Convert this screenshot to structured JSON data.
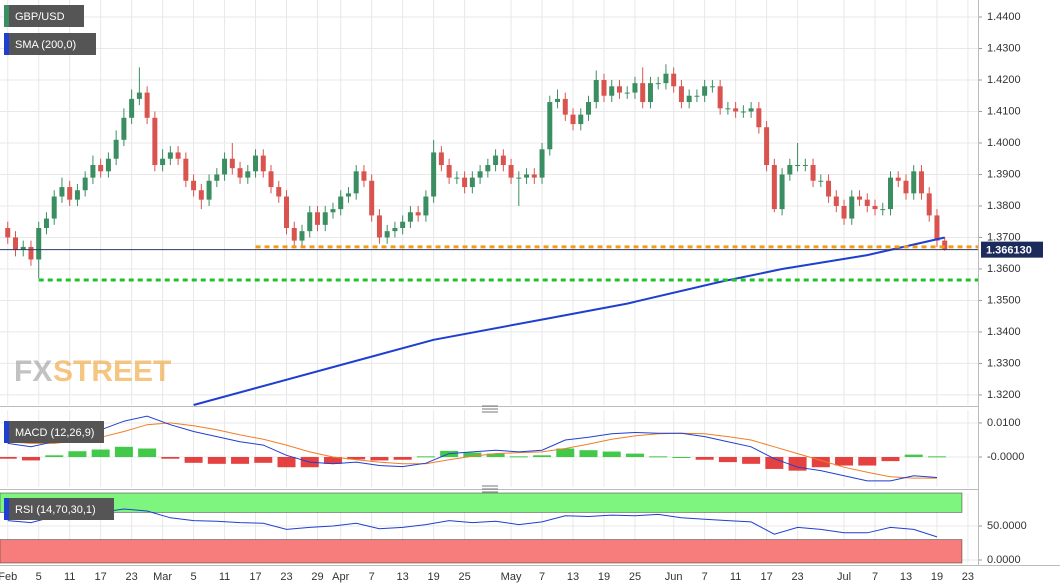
{
  "chart_data": [
    {
      "type": "candlestick",
      "name": "GBP/USD",
      "up_color": "#3b8e61",
      "down_color": "#d9534f",
      "xlim": [
        -1,
        125.3
      ],
      "ylim": [
        1.3168,
        1.4454
      ],
      "grid": true,
      "xticks": [
        {
          "value": 0,
          "label": "Feb"
        },
        {
          "value": 4,
          "label": "5"
        },
        {
          "value": 8,
          "label": "11"
        },
        {
          "value": 12,
          "label": "17"
        },
        {
          "value": 16,
          "label": "23"
        },
        {
          "value": 20,
          "label": "Mar"
        },
        {
          "value": 24,
          "label": "5"
        },
        {
          "value": 28,
          "label": "11"
        },
        {
          "value": 32,
          "label": "17"
        },
        {
          "value": 36,
          "label": "23"
        },
        {
          "value": 40,
          "label": "29"
        },
        {
          "value": 43,
          "label": "Apr"
        },
        {
          "value": 47,
          "label": "7"
        },
        {
          "value": 51,
          "label": "13"
        },
        {
          "value": 55,
          "label": "19"
        },
        {
          "value": 59,
          "label": "25"
        },
        {
          "value": 65,
          "label": "May"
        },
        {
          "value": 69,
          "label": "7"
        },
        {
          "value": 73,
          "label": "13"
        },
        {
          "value": 77,
          "label": "19"
        },
        {
          "value": 81,
          "label": "25"
        },
        {
          "value": 86,
          "label": "Jun"
        },
        {
          "value": 90,
          "label": "7"
        },
        {
          "value": 94,
          "label": "11"
        },
        {
          "value": 98,
          "label": "17"
        },
        {
          "value": 102,
          "label": "23"
        },
        {
          "value": 108,
          "label": "Jul"
        },
        {
          "value": 112,
          "label": "7"
        },
        {
          "value": 116,
          "label": "13"
        },
        {
          "value": 120,
          "label": "19"
        },
        {
          "value": 124,
          "label": "23"
        }
      ],
      "yticks": [
        {
          "value": 1.44,
          "label": "1.4400"
        },
        {
          "value": 1.43,
          "label": "1.4300"
        },
        {
          "value": 1.42,
          "label": "1.4200"
        },
        {
          "value": 1.41,
          "label": "1.4100"
        },
        {
          "value": 1.4,
          "label": "1.4000"
        },
        {
          "value": 1.39,
          "label": "1.3900"
        },
        {
          "value": 1.38,
          "label": "1.3800"
        },
        {
          "value": 1.37,
          "label": "1.3700"
        },
        {
          "value": 1.36,
          "label": "1.3600"
        },
        {
          "value": 1.35,
          "label": "1.3500"
        },
        {
          "value": 1.34,
          "label": "1.3400"
        },
        {
          "value": 1.33,
          "label": "1.3300"
        },
        {
          "value": 1.32,
          "label": "1.3200"
        }
      ],
      "open": [
        1.373,
        1.37,
        1.366,
        1.367,
        1.363,
        1.373,
        1.376,
        1.383,
        1.386,
        1.382,
        1.385,
        1.389,
        1.393,
        1.391,
        1.395,
        1.401,
        1.408,
        1.414,
        1.416,
        1.408,
        1.393,
        1.395,
        1.397,
        1.395,
        1.388,
        1.385,
        1.382,
        1.388,
        1.39,
        1.395,
        1.392,
        1.389,
        1.391,
        1.396,
        1.391,
        1.386,
        1.383,
        1.373,
        1.369,
        1.372,
        1.378,
        1.374,
        1.378,
        1.379,
        1.383,
        1.384,
        1.391,
        1.388,
        1.377,
        1.37,
        1.372,
        1.373,
        1.375,
        1.378,
        1.377,
        1.383,
        1.397,
        1.393,
        1.389,
        1.389,
        1.386,
        1.389,
        1.391,
        1.393,
        1.396,
        1.393,
        1.389,
        1.389,
        1.39,
        1.389,
        1.398,
        1.413,
        1.414,
        1.409,
        1.406,
        1.409,
        1.413,
        1.42,
        1.415,
        1.418,
        1.416,
        1.416,
        1.419,
        1.413,
        1.419,
        1.419,
        1.422,
        1.418,
        1.413,
        1.415,
        1.415,
        1.418,
        1.418,
        1.411,
        1.411,
        1.41,
        1.41,
        1.411,
        1.405,
        1.393,
        1.379,
        1.39,
        1.393,
        1.393,
        1.393,
        1.388,
        1.388,
        1.383,
        1.38,
        1.376,
        1.383,
        1.382,
        1.38,
        1.379,
        1.379,
        1.389,
        1.388,
        1.384,
        1.391,
        1.384,
        1.377,
        1.369
      ],
      "high": [
        1.375,
        1.372,
        1.369,
        1.369,
        1.375,
        1.378,
        1.385,
        1.389,
        1.388,
        1.387,
        1.391,
        1.396,
        1.395,
        1.397,
        1.404,
        1.411,
        1.417,
        1.424,
        1.418,
        1.41,
        1.398,
        1.399,
        1.399,
        1.397,
        1.39,
        1.387,
        1.39,
        1.392,
        1.397,
        1.4,
        1.394,
        1.393,
        1.398,
        1.398,
        1.393,
        1.388,
        1.385,
        1.375,
        1.374,
        1.38,
        1.38,
        1.38,
        1.381,
        1.385,
        1.386,
        1.393,
        1.393,
        1.39,
        1.379,
        1.374,
        1.375,
        1.377,
        1.38,
        1.38,
        1.385,
        1.401,
        1.399,
        1.395,
        1.391,
        1.391,
        1.391,
        1.393,
        1.395,
        1.398,
        1.398,
        1.395,
        1.391,
        1.392,
        1.392,
        1.4,
        1.415,
        1.417,
        1.416,
        1.411,
        1.411,
        1.415,
        1.423,
        1.422,
        1.42,
        1.42,
        1.418,
        1.421,
        1.424,
        1.421,
        1.421,
        1.425,
        1.424,
        1.42,
        1.417,
        1.417,
        1.42,
        1.42,
        1.42,
        1.413,
        1.413,
        1.412,
        1.413,
        1.413,
        1.407,
        1.395,
        1.392,
        1.395,
        1.4,
        1.395,
        1.395,
        1.39,
        1.39,
        1.385,
        1.382,
        1.385,
        1.385,
        1.384,
        1.382,
        1.381,
        1.391,
        1.391,
        1.39,
        1.393,
        1.393,
        1.386,
        1.379,
        1.37
      ],
      "low": [
        1.368,
        1.364,
        1.364,
        1.361,
        1.357,
        1.371,
        1.374,
        1.381,
        1.38,
        1.38,
        1.383,
        1.387,
        1.389,
        1.389,
        1.393,
        1.399,
        1.406,
        1.412,
        1.406,
        1.391,
        1.391,
        1.393,
        1.393,
        1.386,
        1.383,
        1.379,
        1.38,
        1.386,
        1.388,
        1.39,
        1.387,
        1.387,
        1.389,
        1.389,
        1.384,
        1.381,
        1.371,
        1.367,
        1.367,
        1.37,
        1.372,
        1.372,
        1.376,
        1.377,
        1.381,
        1.382,
        1.386,
        1.375,
        1.368,
        1.368,
        1.37,
        1.371,
        1.373,
        1.375,
        1.375,
        1.381,
        1.391,
        1.387,
        1.387,
        1.384,
        1.384,
        1.387,
        1.389,
        1.391,
        1.391,
        1.387,
        1.38,
        1.387,
        1.387,
        1.387,
        1.396,
        1.411,
        1.407,
        1.404,
        1.404,
        1.407,
        1.411,
        1.413,
        1.413,
        1.414,
        1.414,
        1.414,
        1.411,
        1.411,
        1.417,
        1.417,
        1.416,
        1.411,
        1.411,
        1.413,
        1.413,
        1.416,
        1.409,
        1.409,
        1.408,
        1.408,
        1.408,
        1.403,
        1.391,
        1.378,
        1.377,
        1.388,
        1.391,
        1.391,
        1.386,
        1.386,
        1.381,
        1.378,
        1.374,
        1.374,
        1.38,
        1.378,
        1.377,
        1.377,
        1.377,
        1.386,
        1.382,
        1.382,
        1.382,
        1.375,
        1.367,
        1.3658
      ],
      "close": [
        1.37,
        1.366,
        1.367,
        1.363,
        1.373,
        1.376,
        1.383,
        1.386,
        1.382,
        1.385,
        1.389,
        1.393,
        1.391,
        1.395,
        1.401,
        1.408,
        1.414,
        1.416,
        1.408,
        1.393,
        1.395,
        1.397,
        1.395,
        1.388,
        1.385,
        1.382,
        1.388,
        1.39,
        1.395,
        1.392,
        1.389,
        1.391,
        1.396,
        1.391,
        1.386,
        1.383,
        1.373,
        1.369,
        1.372,
        1.378,
        1.374,
        1.378,
        1.379,
        1.383,
        1.384,
        1.391,
        1.388,
        1.377,
        1.37,
        1.372,
        1.373,
        1.375,
        1.378,
        1.377,
        1.383,
        1.397,
        1.393,
        1.389,
        1.389,
        1.386,
        1.389,
        1.391,
        1.393,
        1.396,
        1.393,
        1.389,
        1.389,
        1.39,
        1.389,
        1.398,
        1.413,
        1.414,
        1.409,
        1.406,
        1.409,
        1.413,
        1.42,
        1.415,
        1.418,
        1.416,
        1.416,
        1.419,
        1.413,
        1.419,
        1.419,
        1.422,
        1.418,
        1.413,
        1.415,
        1.415,
        1.418,
        1.418,
        1.411,
        1.411,
        1.41,
        1.41,
        1.411,
        1.405,
        1.393,
        1.379,
        1.39,
        1.393,
        1.393,
        1.393,
        1.388,
        1.388,
        1.383,
        1.38,
        1.376,
        1.383,
        1.382,
        1.38,
        1.379,
        1.379,
        1.389,
        1.388,
        1.384,
        1.391,
        1.384,
        1.377,
        1.369,
        1.3661
      ],
      "sma": {
        "name": "SMA (200,0)",
        "color": "#1f3fd0",
        "x": [
          24,
          43,
          55,
          70,
          80,
          92,
          100,
          111,
          121
        ],
        "values": [
          1.3168,
          1.3295,
          1.3375,
          1.3444,
          1.349,
          1.3559,
          1.36,
          1.3644,
          1.37
        ]
      },
      "levels": [
        {
          "value": 1.367,
          "color": "#f39c12",
          "from": 32
        },
        {
          "value": 1.3565,
          "color": "#22c02a",
          "from": 4
        }
      ],
      "current_price": {
        "value": 1.36613,
        "label": "1.366130"
      },
      "watermark": [
        "FX",
        "STREET"
      ]
    },
    {
      "type": "macd",
      "name": "MACD (12,26,9)",
      "macd_color": "#1f3fd0",
      "signal_color": "#f07e26",
      "up_color": "#22c02a",
      "down_color": "#e02020",
      "ylim": [
        -0.0088,
        0.0138
      ],
      "yticks": [
        {
          "value": 0.01,
          "label": "0.0100"
        },
        {
          "value": 0,
          "label": "-0.0000"
        }
      ],
      "x": [
        0,
        3,
        6,
        9,
        12,
        15,
        18,
        21,
        24,
        27,
        30,
        33,
        36,
        39,
        42,
        45,
        48,
        51,
        54,
        57,
        60,
        63,
        66,
        69,
        72,
        75,
        78,
        81,
        84,
        87,
        90,
        93,
        96,
        99,
        102,
        105,
        108,
        111,
        114,
        117,
        120
      ],
      "macd": [
        0.004,
        0.003,
        0.0045,
        0.0065,
        0.008,
        0.0105,
        0.012,
        0.0095,
        0.0075,
        0.006,
        0.0045,
        0.0035,
        0.0005,
        -0.0015,
        -0.002,
        -0.0015,
        -0.0025,
        -0.0028,
        -0.0018,
        0.001,
        0.0015,
        0.002,
        0.0015,
        0.002,
        0.005,
        0.0058,
        0.0068,
        0.0072,
        0.007,
        0.007,
        0.006,
        0.0045,
        0.003,
        -0.0005,
        -0.003,
        -0.004,
        -0.0055,
        -0.007,
        -0.007,
        -0.0055,
        -0.006
      ],
      "signal": [
        0.0045,
        0.004,
        0.004,
        0.0048,
        0.0058,
        0.0075,
        0.0095,
        0.01,
        0.0092,
        0.008,
        0.0065,
        0.0052,
        0.0035,
        0.0015,
        0,
        -0.0008,
        -0.0015,
        -0.002,
        -0.002,
        -0.0008,
        0.0002,
        0.001,
        0.0013,
        0.0015,
        0.0025,
        0.0038,
        0.0052,
        0.0062,
        0.0068,
        0.007,
        0.0068,
        0.006,
        0.005,
        0.003,
        0.001,
        -0.001,
        -0.003,
        -0.0045,
        -0.0058,
        -0.0062,
        -0.0062
      ],
      "histogram": [
        -0.0005,
        -0.001,
        0.0005,
        0.0017,
        0.0022,
        0.003,
        0.0025,
        -0.0005,
        -0.0017,
        -0.002,
        -0.002,
        -0.0017,
        -0.003,
        -0.003,
        -0.002,
        -0.0007,
        -0.001,
        -0.0008,
        0.0002,
        0.0018,
        0.0013,
        0.001,
        0.0002,
        0.0005,
        0.0025,
        0.002,
        0.0016,
        0.001,
        0.0002,
        0,
        -0.0008,
        -0.0015,
        -0.002,
        -0.0035,
        -0.004,
        -0.003,
        -0.0025,
        -0.0025,
        -0.0012,
        0.0007,
        0.0002
      ]
    },
    {
      "type": "rsi",
      "name": "RSI (14,70,30,1)",
      "color": "#1f3fd0",
      "overbought": 70,
      "oversold": 30,
      "overbought_color": "#7ef57e",
      "oversold_color": "#f77c7c",
      "ylim": [
        -4.4,
        98.5
      ],
      "yticks": [
        {
          "value": 50,
          "label": "50.0000"
        },
        {
          "value": 0,
          "label": "0.0000"
        }
      ],
      "x": [
        0,
        3,
        6,
        9,
        12,
        15,
        18,
        21,
        24,
        27,
        30,
        33,
        36,
        39,
        42,
        45,
        48,
        51,
        54,
        57,
        60,
        63,
        66,
        69,
        72,
        75,
        78,
        81,
        84,
        87,
        90,
        93,
        96,
        99,
        102,
        105,
        108,
        111,
        114,
        117,
        120
      ],
      "values": [
        58,
        55,
        64,
        68,
        70,
        75,
        72,
        62,
        58,
        57,
        55,
        54,
        45,
        48,
        50,
        54,
        46,
        48,
        52,
        58,
        55,
        57,
        52,
        56,
        65,
        64,
        66,
        65,
        67,
        62,
        60,
        58,
        56,
        38,
        48,
        45,
        40,
        40,
        48,
        45,
        34
      ]
    }
  ]
}
